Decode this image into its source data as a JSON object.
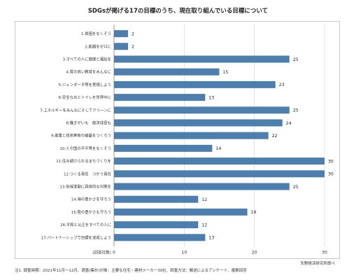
{
  "source": "矢野経済研究所調べ",
  "note": "注1. 調査時期：2021年11月～12月、調査(集計)対象：主要な住宅・建材メーカー30社、調査方法：郵送によるアンケート、複数回答",
  "chart_data": {
    "type": "bar",
    "orientation": "horizontal",
    "title": "SDGsが掲げる17の目標のうち、現在取り組んでいる目標について",
    "ylabel": "(回答社数)",
    "xlim": [
      0,
      30
    ],
    "xticks": [
      0,
      10,
      20,
      30
    ],
    "grid": true,
    "bar_color": "#4d7fae",
    "categories": [
      "1:貧困をなくそう",
      "2:飢餓をゼロに",
      "3:すべての人に健康と福祉を",
      "4:質の高い教育をみんなに",
      "5:ジェンダー平等を実現しよう",
      "6:安全な水とトイレを世界中に",
      "7:エネルギーをみんなにそしてクリーンに",
      "8:働きがいも　経済成長も",
      "9:産業と技術革新の基盤をつくろう",
      "10:人や国の不平等をなくそう",
      "11:住み続けられるまちづくりを",
      "12:つくる責任　つかう責任",
      "13:気候変動に具体的な対策を",
      "14:海の豊かさを守ろう",
      "15:陸の豊かさも守ろう",
      "16:平和と公正をすべての人に",
      "17:パートナーシップで目標を達成しよう"
    ],
    "values": [
      2,
      2,
      25,
      15,
      23,
      13,
      25,
      24,
      22,
      14,
      30,
      30,
      25,
      12,
      19,
      12,
      13
    ]
  }
}
